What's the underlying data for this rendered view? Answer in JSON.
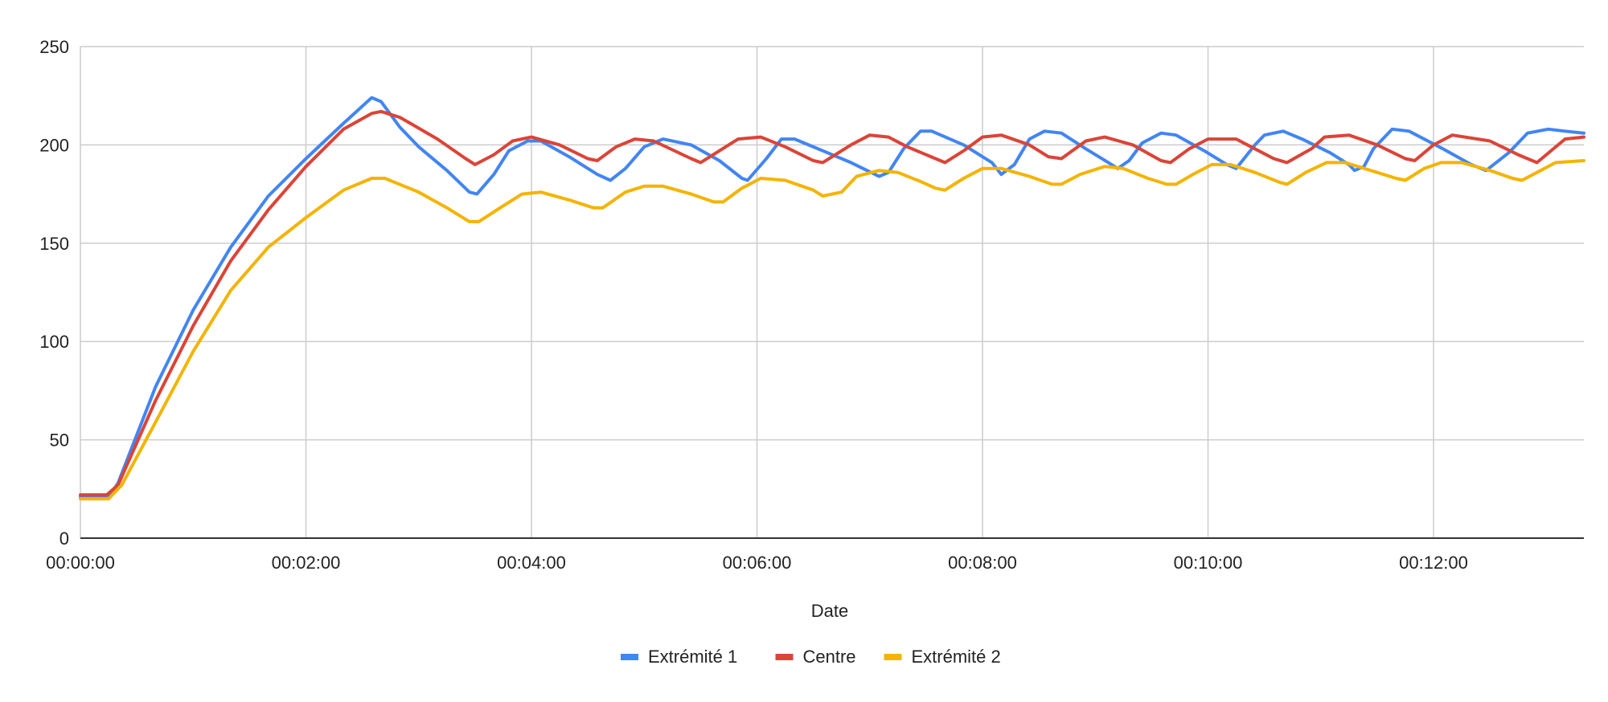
{
  "chart_data": {
    "type": "line",
    "title": "",
    "xlabel": "Date",
    "ylabel": "",
    "x_unit": "seconds",
    "xlim": [
      0,
      800
    ],
    "ylim": [
      0,
      250
    ],
    "yticks": [
      0,
      50,
      100,
      150,
      200,
      250
    ],
    "xticks": [
      {
        "value": 0,
        "label": "00:00:00"
      },
      {
        "value": 120,
        "label": "00:02:00"
      },
      {
        "value": 240,
        "label": "00:04:00"
      },
      {
        "value": 360,
        "label": "00:06:00"
      },
      {
        "value": 480,
        "label": "00:08:00"
      },
      {
        "value": 600,
        "label": "00:10:00"
      },
      {
        "value": 720,
        "label": "00:12:00"
      }
    ],
    "grid": true,
    "legend_position": "bottom",
    "series": [
      {
        "name": "Extrémité 1",
        "color": "#4285f4",
        "points": [
          [
            0,
            21
          ],
          [
            15,
            21
          ],
          [
            20,
            28
          ],
          [
            40,
            77
          ],
          [
            60,
            116
          ],
          [
            80,
            148
          ],
          [
            100,
            174
          ],
          [
            120,
            193
          ],
          [
            140,
            211
          ],
          [
            155,
            224
          ],
          [
            160,
            222
          ],
          [
            170,
            209
          ],
          [
            180,
            199
          ],
          [
            195,
            187
          ],
          [
            207,
            176
          ],
          [
            211,
            175
          ],
          [
            220,
            185
          ],
          [
            228,
            197
          ],
          [
            238,
            202
          ],
          [
            245,
            202
          ],
          [
            260,
            194
          ],
          [
            275,
            185
          ],
          [
            282,
            182
          ],
          [
            290,
            188
          ],
          [
            300,
            199
          ],
          [
            310,
            203
          ],
          [
            325,
            200
          ],
          [
            340,
            192
          ],
          [
            352,
            183
          ],
          [
            355,
            182
          ],
          [
            365,
            193
          ],
          [
            373,
            203
          ],
          [
            380,
            203
          ],
          [
            395,
            197
          ],
          [
            410,
            191
          ],
          [
            425,
            184
          ],
          [
            430,
            186
          ],
          [
            438,
            198
          ],
          [
            447,
            207
          ],
          [
            453,
            207
          ],
          [
            470,
            200
          ],
          [
            485,
            191
          ],
          [
            490,
            185
          ],
          [
            497,
            190
          ],
          [
            505,
            203
          ],
          [
            513,
            207
          ],
          [
            522,
            206
          ],
          [
            535,
            198
          ],
          [
            547,
            191
          ],
          [
            552,
            188
          ],
          [
            558,
            192
          ],
          [
            565,
            201
          ],
          [
            575,
            206
          ],
          [
            583,
            205
          ],
          [
            598,
            197
          ],
          [
            610,
            190
          ],
          [
            615,
            188
          ],
          [
            625,
            200
          ],
          [
            630,
            205
          ],
          [
            640,
            207
          ],
          [
            650,
            203
          ],
          [
            665,
            196
          ],
          [
            675,
            190
          ],
          [
            678,
            187
          ],
          [
            683,
            189
          ],
          [
            688,
            198
          ],
          [
            698,
            208
          ],
          [
            707,
            207
          ],
          [
            725,
            198
          ],
          [
            740,
            190
          ],
          [
            748,
            187
          ],
          [
            760,
            196
          ],
          [
            770,
            206
          ],
          [
            781,
            208
          ],
          [
            790,
            207
          ],
          [
            800,
            206
          ]
        ]
      },
      {
        "name": "Centre",
        "color": "#db4437",
        "points": [
          [
            0,
            22
          ],
          [
            14,
            22
          ],
          [
            20,
            27
          ],
          [
            40,
            70
          ],
          [
            60,
            108
          ],
          [
            80,
            141
          ],
          [
            100,
            167
          ],
          [
            120,
            189
          ],
          [
            140,
            208
          ],
          [
            155,
            216
          ],
          [
            160,
            217
          ],
          [
            170,
            214
          ],
          [
            190,
            203
          ],
          [
            205,
            193
          ],
          [
            210,
            190
          ],
          [
            220,
            195
          ],
          [
            230,
            202
          ],
          [
            240,
            204
          ],
          [
            255,
            200
          ],
          [
            270,
            193
          ],
          [
            275,
            192
          ],
          [
            285,
            199
          ],
          [
            295,
            203
          ],
          [
            305,
            202
          ],
          [
            325,
            193
          ],
          [
            330,
            191
          ],
          [
            340,
            197
          ],
          [
            350,
            203
          ],
          [
            362,
            204
          ],
          [
            375,
            199
          ],
          [
            390,
            192
          ],
          [
            395,
            191
          ],
          [
            410,
            200
          ],
          [
            420,
            205
          ],
          [
            430,
            204
          ],
          [
            440,
            199
          ],
          [
            455,
            193
          ],
          [
            460,
            191
          ],
          [
            470,
            197
          ],
          [
            480,
            204
          ],
          [
            490,
            205
          ],
          [
            505,
            200
          ],
          [
            515,
            194
          ],
          [
            522,
            193
          ],
          [
            535,
            202
          ],
          [
            545,
            204
          ],
          [
            560,
            200
          ],
          [
            575,
            192
          ],
          [
            580,
            191
          ],
          [
            590,
            198
          ],
          [
            600,
            203
          ],
          [
            615,
            203
          ],
          [
            625,
            198
          ],
          [
            635,
            193
          ],
          [
            642,
            191
          ],
          [
            655,
            198
          ],
          [
            662,
            204
          ],
          [
            675,
            205
          ],
          [
            690,
            200
          ],
          [
            705,
            193
          ],
          [
            710,
            192
          ],
          [
            720,
            200
          ],
          [
            730,
            205
          ],
          [
            750,
            202
          ],
          [
            765,
            195
          ],
          [
            775,
            191
          ],
          [
            790,
            203
          ],
          [
            800,
            204
          ]
        ]
      },
      {
        "name": "Extrémité 2",
        "color": "#f4b400",
        "points": [
          [
            0,
            20
          ],
          [
            15,
            20
          ],
          [
            22,
            27
          ],
          [
            40,
            59
          ],
          [
            60,
            95
          ],
          [
            80,
            126
          ],
          [
            100,
            148
          ],
          [
            120,
            163
          ],
          [
            140,
            177
          ],
          [
            155,
            183
          ],
          [
            162,
            183
          ],
          [
            180,
            176
          ],
          [
            195,
            168
          ],
          [
            207,
            161
          ],
          [
            212,
            161
          ],
          [
            225,
            169
          ],
          [
            235,
            175
          ],
          [
            245,
            176
          ],
          [
            260,
            172
          ],
          [
            273,
            168
          ],
          [
            278,
            168
          ],
          [
            290,
            176
          ],
          [
            300,
            179
          ],
          [
            310,
            179
          ],
          [
            325,
            175
          ],
          [
            337,
            171
          ],
          [
            342,
            171
          ],
          [
            352,
            178
          ],
          [
            362,
            183
          ],
          [
            375,
            182
          ],
          [
            390,
            177
          ],
          [
            395,
            174
          ],
          [
            405,
            176
          ],
          [
            413,
            184
          ],
          [
            425,
            187
          ],
          [
            435,
            186
          ],
          [
            448,
            181
          ],
          [
            455,
            178
          ],
          [
            460,
            177
          ],
          [
            470,
            183
          ],
          [
            480,
            188
          ],
          [
            490,
            188
          ],
          [
            505,
            184
          ],
          [
            517,
            180
          ],
          [
            522,
            180
          ],
          [
            532,
            185
          ],
          [
            545,
            189
          ],
          [
            555,
            188
          ],
          [
            568,
            183
          ],
          [
            578,
            180
          ],
          [
            583,
            180
          ],
          [
            592,
            185
          ],
          [
            602,
            190
          ],
          [
            612,
            190
          ],
          [
            625,
            186
          ],
          [
            638,
            181
          ],
          [
            642,
            180
          ],
          [
            652,
            186
          ],
          [
            663,
            191
          ],
          [
            673,
            191
          ],
          [
            690,
            186
          ],
          [
            700,
            183
          ],
          [
            705,
            182
          ],
          [
            715,
            188
          ],
          [
            724,
            191
          ],
          [
            735,
            191
          ],
          [
            750,
            187
          ],
          [
            762,
            183
          ],
          [
            767,
            182
          ],
          [
            775,
            186
          ],
          [
            785,
            191
          ],
          [
            800,
            192
          ]
        ]
      }
    ]
  }
}
